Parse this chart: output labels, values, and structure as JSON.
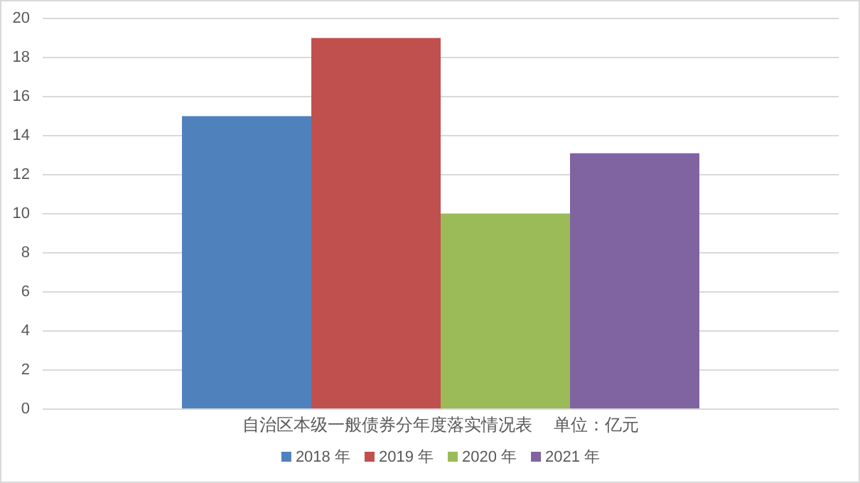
{
  "chart_data": {
    "type": "bar",
    "categories": [
      "自治区本级一般债券分年度落实情况表　 单位：亿元"
    ],
    "series": [
      {
        "name": "2018 年",
        "color": "#4f81bd",
        "values": [
          15
        ]
      },
      {
        "name": "2019 年",
        "color": "#c0504d",
        "values": [
          19
        ]
      },
      {
        "name": "2020 年",
        "color": "#9bbb59",
        "values": [
          10
        ]
      },
      {
        "name": "2021 年",
        "color": "#8064a2",
        "values": [
          13.1
        ]
      }
    ],
    "ylim": [
      0,
      20
    ],
    "yticks": [
      0,
      2,
      4,
      6,
      8,
      10,
      12,
      14,
      16,
      18,
      20
    ],
    "grid": "y",
    "legend": "bottom"
  }
}
